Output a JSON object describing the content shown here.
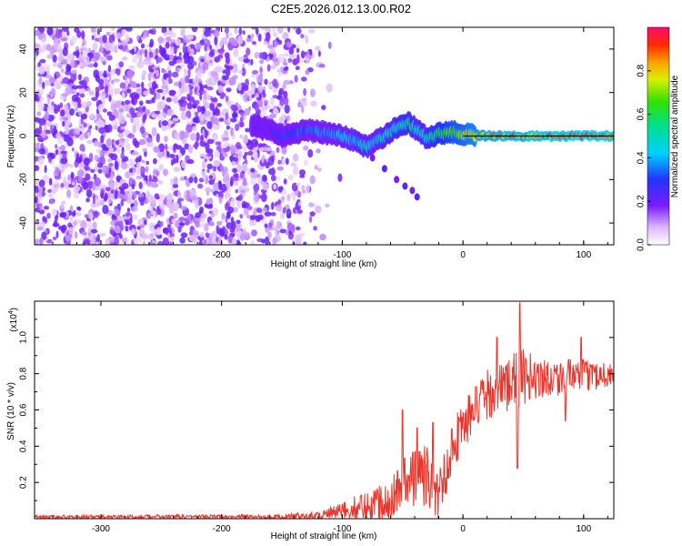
{
  "title": "C2E5.2026.012.13.00.R02",
  "chart_data": [
    {
      "type": "heatmap",
      "xlabel": "Height of straight line (km)",
      "ylabel": "Frequency (Hz)",
      "xlim": [
        -355,
        125
      ],
      "ylim": [
        -50,
        50
      ],
      "xticks": [
        -300,
        -200,
        -100,
        0,
        100
      ],
      "yticks": [
        -40,
        -20,
        0,
        20,
        40
      ],
      "colorbar": {
        "label": "Normalized spectral amplitude",
        "range": [
          0,
          1
        ],
        "ticks": [
          "0.0",
          "0.2",
          "0.4",
          "0.6",
          "0.8"
        ]
      },
      "noise_region_km": [
        -355,
        -120
      ],
      "signal_track": {
        "x": [
          -175,
          -160,
          -150,
          -140,
          -130,
          -120,
          -110,
          -100,
          -90,
          -80,
          -75,
          -65,
          -55,
          -45,
          -38,
          -30,
          -20,
          -10,
          0,
          20,
          40,
          60,
          80,
          100,
          125
        ],
        "freq": [
          5,
          3,
          0,
          1,
          3,
          2,
          1,
          0,
          -2,
          -5,
          -3,
          0,
          4,
          6,
          3,
          -1,
          1,
          2,
          1,
          0,
          0,
          0,
          0,
          0,
          0
        ],
        "amplitude": [
          0.2,
          0.25,
          0.3,
          0.35,
          0.35,
          0.4,
          0.4,
          0.45,
          0.45,
          0.5,
          0.45,
          0.5,
          0.55,
          0.6,
          0.5,
          0.55,
          0.65,
          0.7,
          0.75,
          0.85,
          0.9,
          0.9,
          0.92,
          0.95,
          0.95
        ]
      },
      "branch": {
        "x": [
          -75,
          -65,
          -55,
          -48,
          -42,
          -38
        ],
        "freq": [
          -10,
          -15,
          -20,
          -23,
          -25,
          -28
        ]
      }
    },
    {
      "type": "line",
      "xlabel": "Height of straight line (km)",
      "ylabel": "SNR (10 * v/v)",
      "yscale_label": "(x10",
      "yscale_exp": "4",
      "yscale_close": ")",
      "xlim": [
        -355,
        125
      ],
      "ylim": [
        0,
        1.2
      ],
      "xticks": [
        -300,
        -200,
        -100,
        0,
        100
      ],
      "yticks": [
        0.2,
        0.4,
        0.6,
        0.8,
        1.0
      ],
      "ytick_labels": [
        "0.2",
        "0.4",
        "0.6",
        "0.8",
        "1.0"
      ],
      "color": "#e8362c",
      "envelope": {
        "x": [
          -355,
          -150,
          -120,
          -100,
          -80,
          -60,
          -50,
          -40,
          -30,
          -20,
          -10,
          0,
          10,
          20,
          30,
          40,
          50,
          60,
          80,
          100,
          125
        ],
        "base": [
          0.01,
          0.012,
          0.02,
          0.04,
          0.07,
          0.12,
          0.18,
          0.24,
          0.24,
          0.12,
          0.38,
          0.52,
          0.6,
          0.68,
          0.72,
          0.75,
          0.78,
          0.78,
          0.78,
          0.79,
          0.8
        ],
        "amp": [
          0.01,
          0.012,
          0.025,
          0.05,
          0.09,
          0.12,
          0.16,
          0.18,
          0.18,
          0.15,
          0.15,
          0.14,
          0.14,
          0.14,
          0.14,
          0.16,
          0.16,
          0.12,
          0.1,
          0.09,
          0.07
        ]
      },
      "spikes": [
        {
          "x": -50,
          "y": 0.6
        },
        {
          "x": -38,
          "y": 0.5
        },
        {
          "x": -25,
          "y": 0.53
        },
        {
          "x": 28,
          "y": 1.0
        },
        {
          "x": 45,
          "y": 0.28
        },
        {
          "x": 47,
          "y": 1.19
        },
        {
          "x": 85,
          "y": 0.54
        },
        {
          "x": 98,
          "y": 1.0
        }
      ]
    }
  ]
}
